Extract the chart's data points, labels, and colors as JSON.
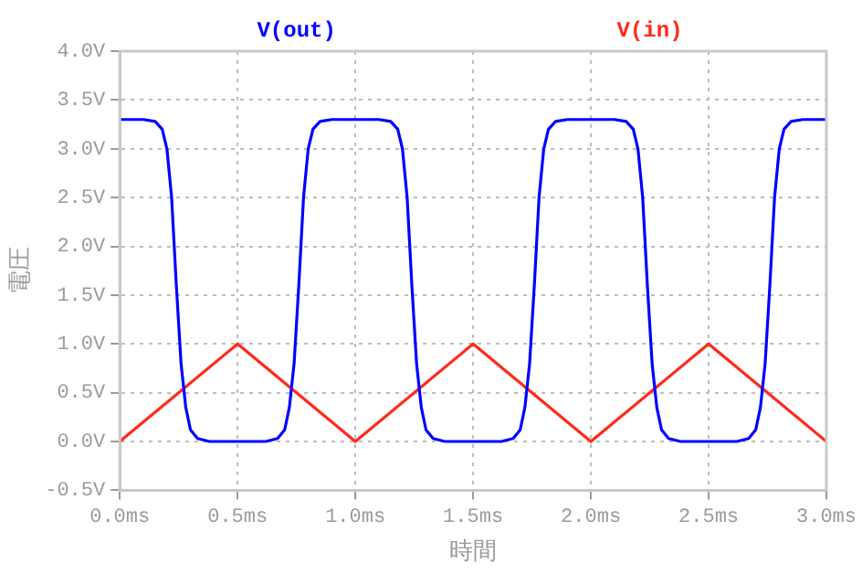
{
  "chart_data": {
    "type": "line",
    "xlabel": "時間",
    "ylabel": "電圧",
    "legend": "top",
    "grid": true,
    "marker": "none",
    "xlim": [
      0,
      3
    ],
    "xticks": [
      {
        "value": 0,
        "label": "0.0ms"
      },
      {
        "value": 0.5,
        "label": "0.5ms"
      },
      {
        "value": 1,
        "label": "1.0ms"
      },
      {
        "value": 1.5,
        "label": "1.5ms"
      },
      {
        "value": 2,
        "label": "2.0ms"
      },
      {
        "value": 2.5,
        "label": "2.5ms"
      },
      {
        "value": 3,
        "label": "3.0ms"
      }
    ],
    "ylim": [
      -0.5,
      4
    ],
    "yticks": [
      {
        "value": -0.5,
        "label": "-0.5V"
      },
      {
        "value": 0,
        "label": "0.0V"
      },
      {
        "value": 0.5,
        "label": "0.5V"
      },
      {
        "value": 1,
        "label": "1.0V"
      },
      {
        "value": 1.5,
        "label": "1.5V"
      },
      {
        "value": 2,
        "label": "2.0V"
      },
      {
        "value": 2.5,
        "label": "2.5V"
      },
      {
        "value": 3,
        "label": "3.0V"
      },
      {
        "value": 3.5,
        "label": "3.5V"
      },
      {
        "value": 4,
        "label": "4.0V"
      }
    ],
    "series": [
      {
        "name": "V(out)",
        "color": "#0000ff",
        "x": [
          0,
          0.1,
          0.15,
          0.18,
          0.2,
          0.22,
          0.24,
          0.26,
          0.28,
          0.3,
          0.33,
          0.38,
          0.62,
          0.67,
          0.7,
          0.72,
          0.74,
          0.76,
          0.78,
          0.8,
          0.82,
          0.85,
          0.9,
          1.1,
          1.15,
          1.18,
          1.2,
          1.22,
          1.24,
          1.26,
          1.28,
          1.3,
          1.33,
          1.38,
          1.62,
          1.67,
          1.7,
          1.72,
          1.74,
          1.76,
          1.78,
          1.8,
          1.82,
          1.85,
          1.9,
          2.1,
          2.15,
          2.18,
          2.2,
          2.22,
          2.24,
          2.26,
          2.28,
          2.3,
          2.33,
          2.38,
          2.62,
          2.67,
          2.7,
          2.72,
          2.74,
          2.76,
          2.78,
          2.8,
          2.82,
          2.85,
          2.9,
          3
        ],
        "values": [
          3.3,
          3.3,
          3.28,
          3.2,
          3.0,
          2.5,
          1.6,
          0.8,
          0.35,
          0.12,
          0.03,
          0,
          0,
          0.03,
          0.12,
          0.35,
          0.8,
          1.6,
          2.5,
          3.0,
          3.2,
          3.28,
          3.3,
          3.3,
          3.28,
          3.2,
          3.0,
          2.5,
          1.6,
          0.8,
          0.35,
          0.12,
          0.03,
          0,
          0,
          0.03,
          0.12,
          0.35,
          0.8,
          1.6,
          2.5,
          3.0,
          3.2,
          3.28,
          3.3,
          3.3,
          3.28,
          3.2,
          3.0,
          2.5,
          1.6,
          0.8,
          0.35,
          0.12,
          0.03,
          0,
          0,
          0.03,
          0.12,
          0.35,
          0.8,
          1.6,
          2.5,
          3.0,
          3.2,
          3.28,
          3.3,
          3.3
        ]
      },
      {
        "name": "V(in)",
        "color": "#ff2a1a",
        "x": [
          0,
          0.5,
          1,
          1.5,
          2,
          2.5,
          3
        ],
        "values": [
          0,
          1,
          0,
          1,
          0,
          1,
          0
        ]
      }
    ]
  }
}
